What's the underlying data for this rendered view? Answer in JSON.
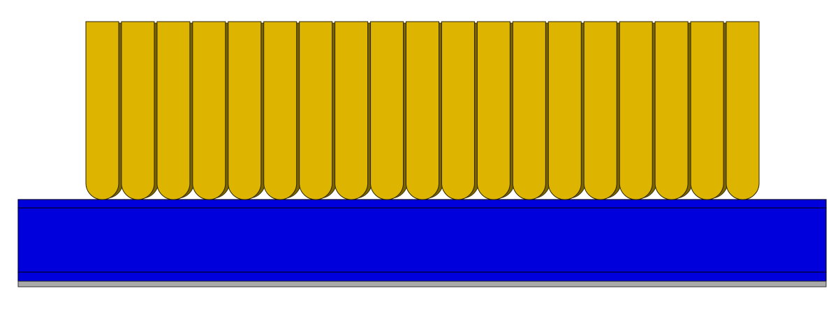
{
  "colors": {
    "background": "#ffffff",
    "rod_fill": "#ddb500",
    "rod_shadow": "#7a6400",
    "rod_stroke": "#2a2200",
    "substrate_fill": "#0000dd",
    "substrate_stroke": "#000033",
    "base_strip_fill": "#aaaaaa",
    "base_strip_stroke": "#333333"
  },
  "diagram": {
    "rod_count": 19,
    "rod_end_shape": "rounded-bottom",
    "substrate_layers": [
      "top-blue-layer",
      "main-blue-layer",
      "bottom-blue-layer",
      "gray-base-strip"
    ]
  }
}
